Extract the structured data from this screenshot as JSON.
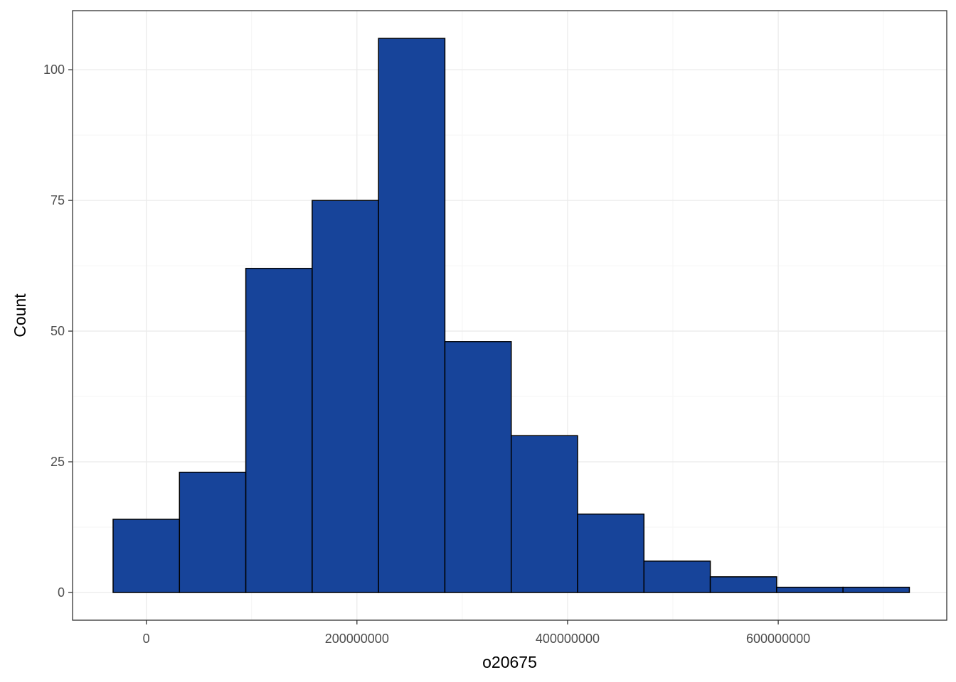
{
  "chart_data": {
    "type": "bar",
    "subtype": "histogram",
    "xlabel": "o20675",
    "ylabel": "Count",
    "bin_width": 63000000,
    "bins": [
      {
        "x_start": -31500000,
        "x_end": 31500000,
        "count": 14
      },
      {
        "x_start": 31500000,
        "x_end": 94500000,
        "count": 23
      },
      {
        "x_start": 94500000,
        "x_end": 157500000,
        "count": 62
      },
      {
        "x_start": 157500000,
        "x_end": 220500000,
        "count": 75
      },
      {
        "x_start": 220500000,
        "x_end": 283500000,
        "count": 106
      },
      {
        "x_start": 283500000,
        "x_end": 346500000,
        "count": 48
      },
      {
        "x_start": 346500000,
        "x_end": 409500000,
        "count": 30
      },
      {
        "x_start": 409500000,
        "x_end": 472500000,
        "count": 15
      },
      {
        "x_start": 472500000,
        "x_end": 535500000,
        "count": 6
      },
      {
        "x_start": 535500000,
        "x_end": 598500000,
        "count": 3
      },
      {
        "x_start": 598500000,
        "x_end": 661500000,
        "count": 1
      },
      {
        "x_start": 661500000,
        "x_end": 724500000,
        "count": 1
      }
    ],
    "x_ticks": [
      {
        "value": 0,
        "label": "0"
      },
      {
        "value": 200000000,
        "label": "200000000"
      },
      {
        "value": 400000000,
        "label": "400000000"
      },
      {
        "value": 600000000,
        "label": "600000000"
      }
    ],
    "y_ticks": [
      {
        "value": 0,
        "label": "0"
      },
      {
        "value": 25,
        "label": "25"
      },
      {
        "value": 50,
        "label": "50"
      },
      {
        "value": 75,
        "label": "75"
      },
      {
        "value": 100,
        "label": "100"
      }
    ],
    "xlim": [
      -70000000,
      760000000
    ],
    "ylim": [
      -5.3,
      111.3
    ],
    "grid": true,
    "legend": "none",
    "colors": {
      "bar_fill": "#17449A",
      "bar_edge": "#000000",
      "grid_major": "#EBEBEB",
      "grid_minor": "#F5F5F5",
      "panel_border": "#333333",
      "background": "#FFFFFF"
    }
  }
}
